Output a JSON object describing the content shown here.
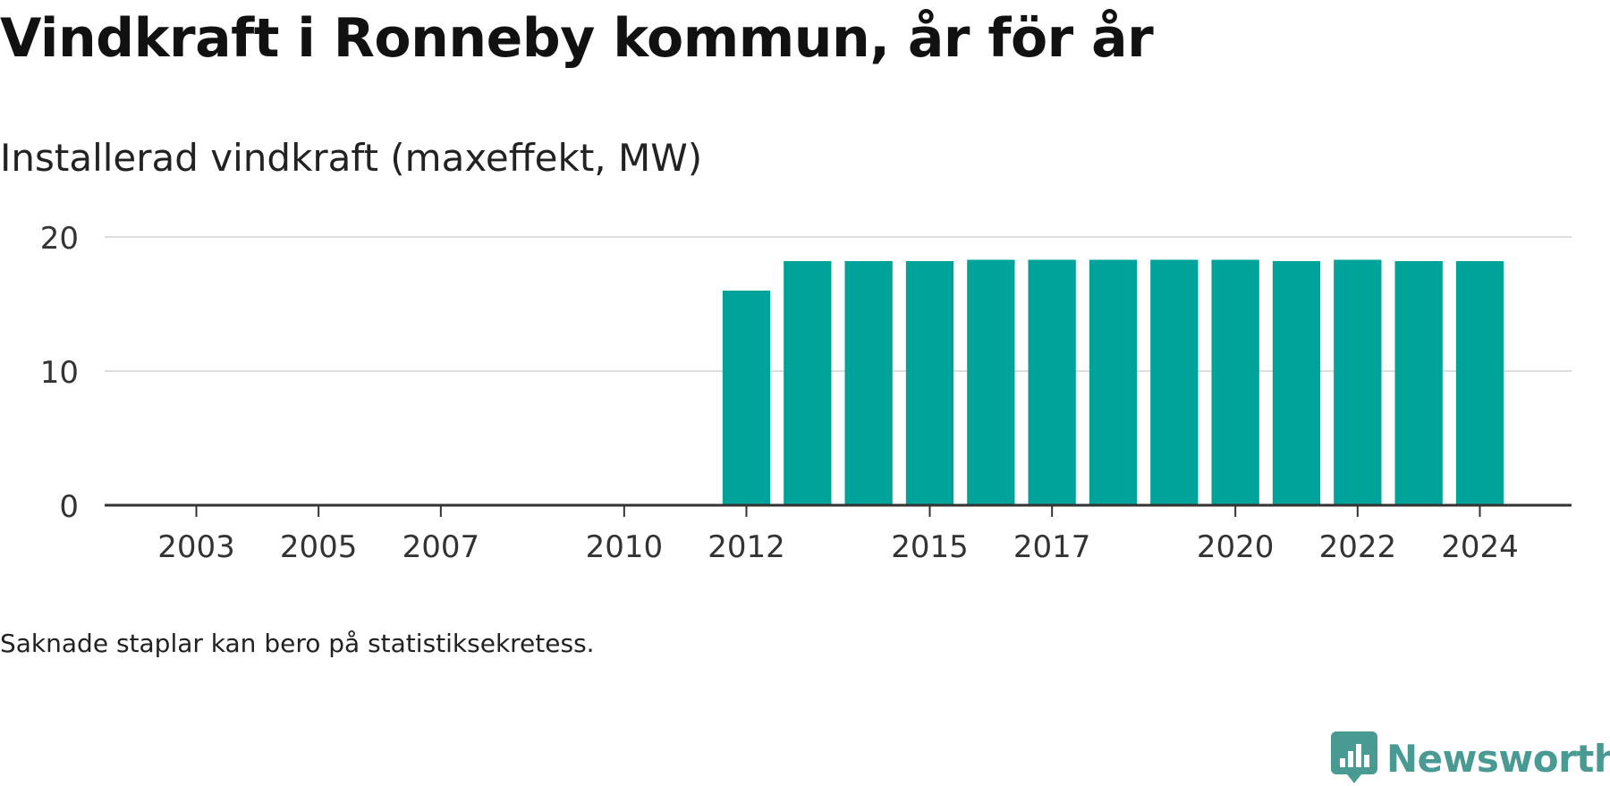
{
  "header": {
    "title": "Vindkraft i Ronneby kommun, år för år",
    "subtitle": "Installerad vindkraft (maxeffekt, MW)"
  },
  "footer": {
    "note": "Saknade staplar kan bero på statistiksekretess.",
    "brand": "Newsworthy"
  },
  "colors": {
    "bar": "#00a39a",
    "grid": "#dddddd",
    "axis": "#333333",
    "brand": "#4a9a94"
  },
  "chart_data": {
    "type": "bar",
    "title": "Vindkraft i Ronneby kommun, år för år",
    "subtitle": "Installerad vindkraft (maxeffekt, MW)",
    "ylim": [
      0,
      20
    ],
    "yticks": [
      0,
      10,
      20
    ],
    "xlim": [
      2001.5,
      2025.5
    ],
    "xticks": [
      2003,
      2005,
      2007,
      2010,
      2012,
      2015,
      2017,
      2020,
      2022,
      2024
    ],
    "grid": true,
    "legend": "none",
    "x": [
      2012,
      2013,
      2014,
      2015,
      2016,
      2017,
      2018,
      2019,
      2020,
      2021,
      2022,
      2023,
      2024
    ],
    "values": [
      16.0,
      18.2,
      18.2,
      18.2,
      18.3,
      18.3,
      18.3,
      18.3,
      18.3,
      18.2,
      18.3,
      18.2,
      18.2
    ]
  }
}
